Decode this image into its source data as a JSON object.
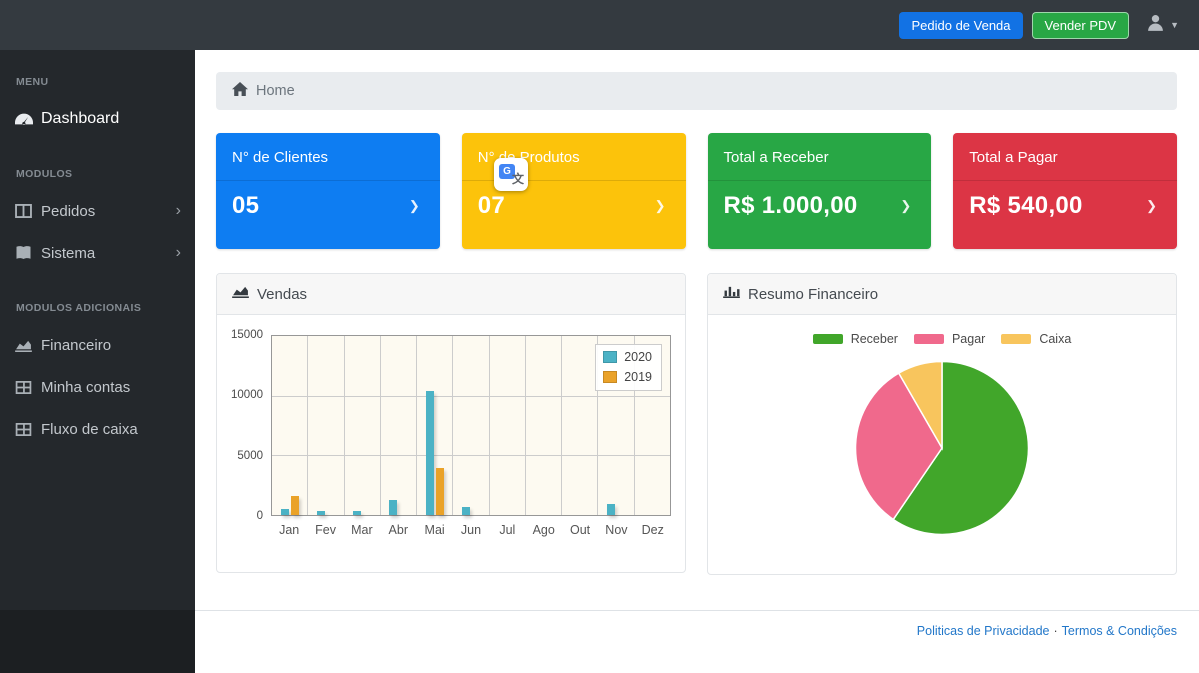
{
  "topbar": {
    "pedido_venda_label": "Pedido de Venda",
    "vender_pdv_label": "Vender PDV",
    "pedido_venda_color": "#1272e4",
    "vender_pdv_color": "#28a745",
    "user_icon": "user-icon",
    "caret_icon": "caret-down-icon"
  },
  "icons": {
    "caret_down": "▼",
    "chevron_right": "❯",
    "submenu_arrow": "›"
  },
  "sidebar": {
    "sections": [
      {
        "heading": "MENU",
        "items": [
          {
            "label": "Dashboard",
            "icon": "tachometer-icon",
            "active": true
          }
        ]
      },
      {
        "heading": "MODULOS",
        "items": [
          {
            "label": "Pedidos",
            "icon": "columns-icon",
            "has_submenu": true
          },
          {
            "label": "Sistema",
            "icon": "book-open-icon",
            "has_submenu": true
          }
        ]
      },
      {
        "heading": "MODULOS ADICIONAIS",
        "items": [
          {
            "label": "Financeiro",
            "icon": "chart-area-icon"
          },
          {
            "label": "Minha contas",
            "icon": "table-icon"
          },
          {
            "label": "Fluxo de caixa",
            "icon": "table-icon"
          }
        ]
      }
    ]
  },
  "breadcrumb": {
    "label": "Home",
    "icon": "home-icon"
  },
  "cards": [
    {
      "title": "N° de Clientes",
      "value": "05",
      "color": "#0e7df2"
    },
    {
      "title": "N° de Produtos",
      "value": "07",
      "color": "#fcc30b"
    },
    {
      "title": "Total a Receber",
      "value": "R$ 1.000,00",
      "color": "#28a745"
    },
    {
      "title": "Total a Pagar",
      "value": "R$ 540,00",
      "color": "#dc3545"
    }
  ],
  "panels": {
    "vendas": {
      "title": "Vendas",
      "icon": "chart-area-icon"
    },
    "resumo": {
      "title": "Resumo Financeiro",
      "icon": "chart-bar-icon"
    }
  },
  "chart_data": [
    {
      "type": "bar",
      "title": "Vendas",
      "categories": [
        "Jan",
        "Fev",
        "Mar",
        "Abr",
        "Mai",
        "Jun",
        "Jul",
        "Ago",
        "Out",
        "Nov",
        "Dez"
      ],
      "series": [
        {
          "name": "2020",
          "color": "#4bb2c5",
          "values": [
            500,
            350,
            350,
            1250,
            10400,
            650,
            0,
            0,
            0,
            900,
            0
          ]
        },
        {
          "name": "2019",
          "color": "#eaa228",
          "values": [
            1600,
            0,
            0,
            0,
            3900,
            0,
            0,
            0,
            0,
            0,
            0
          ]
        }
      ],
      "xlabel": "",
      "ylabel": "",
      "ylim": [
        0,
        15000
      ],
      "yticks": [
        0,
        5000,
        10000,
        15000
      ],
      "grid": true,
      "legend_position": "top-right",
      "plot_background": "#fdfaf1",
      "grid_line_color": "#cccccc",
      "border_color": "#979797"
    },
    {
      "type": "pie",
      "title": "Resumo Financeiro",
      "labels": [
        "Receber",
        "Pagar",
        "Caixa"
      ],
      "values": [
        1000,
        540,
        140
      ],
      "colors": [
        "#41a62a",
        "#f0698c",
        "#f8c55d"
      ],
      "legend_position": "top",
      "start_angle_deg": -90,
      "direction": "clockwise"
    }
  ],
  "footer": {
    "privacy_label": "Politicas de Privacidade",
    "separator": "·",
    "terms_label": "Termos & Condições"
  },
  "overlay": {
    "name": "google-translate-icon",
    "g_letter": "G",
    "translate_char": "文"
  }
}
